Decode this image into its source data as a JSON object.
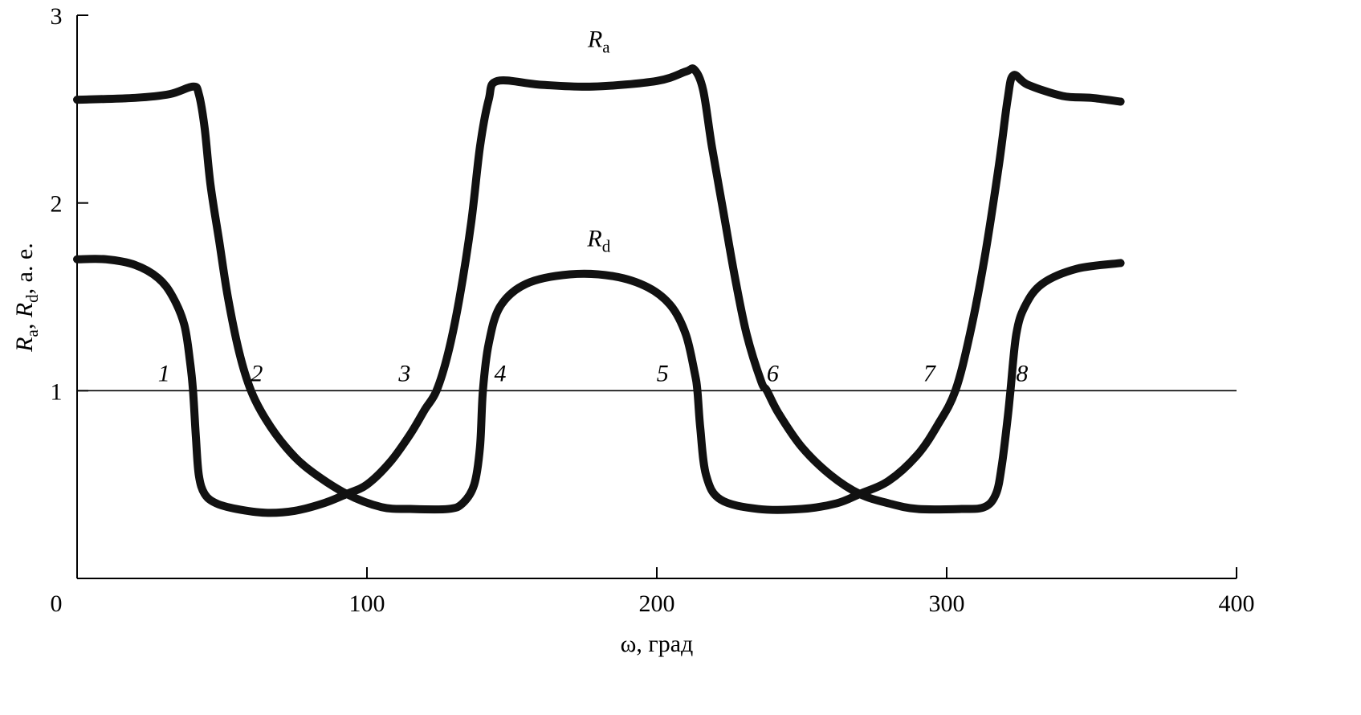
{
  "chart_data": {
    "type": "line",
    "title": "",
    "xlabel": "ω, град",
    "ylabel": {
      "parts": [
        [
          "R",
          "i"
        ],
        [
          "a",
          "sub"
        ],
        [
          ", ",
          ""
        ],
        [
          "R",
          "i"
        ],
        [
          "d",
          "sub"
        ],
        [
          ", a. e.",
          ""
        ]
      ]
    },
    "xlim": [
      0,
      400
    ],
    "ylim": [
      0,
      3
    ],
    "x_ticks": [
      "0",
      "100",
      "200",
      "300",
      "400"
    ],
    "y_ticks": [
      "1",
      "2",
      "3"
    ],
    "grid": false,
    "reference_line": {
      "y": 1
    },
    "line_color": "#111111",
    "series": [
      {
        "name": "Ra",
        "label_main": "R",
        "label_sub": "a",
        "label_at": [
          180,
          2.83
        ],
        "points": [
          [
            0,
            1.7
          ],
          [
            10,
            1.7
          ],
          [
            20,
            1.67
          ],
          [
            28,
            1.6
          ],
          [
            33,
            1.5
          ],
          [
            37,
            1.35
          ],
          [
            39,
            1.15
          ],
          [
            40,
            1.0
          ],
          [
            41,
            0.75
          ],
          [
            42,
            0.55
          ],
          [
            44,
            0.45
          ],
          [
            48,
            0.4
          ],
          [
            55,
            0.37
          ],
          [
            65,
            0.35
          ],
          [
            75,
            0.36
          ],
          [
            85,
            0.4
          ],
          [
            93,
            0.45
          ],
          [
            100,
            0.5
          ],
          [
            108,
            0.62
          ],
          [
            115,
            0.77
          ],
          [
            120,
            0.9
          ],
          [
            124,
            1.0
          ],
          [
            128,
            1.2
          ],
          [
            132,
            1.5
          ],
          [
            136,
            1.9
          ],
          [
            139,
            2.3
          ],
          [
            142,
            2.55
          ],
          [
            145,
            2.65
          ],
          [
            160,
            2.63
          ],
          [
            178,
            2.62
          ],
          [
            200,
            2.65
          ],
          [
            210,
            2.7
          ],
          [
            213,
            2.71
          ],
          [
            216,
            2.6
          ],
          [
            219,
            2.3
          ],
          [
            223,
            1.95
          ],
          [
            227,
            1.6
          ],
          [
            231,
            1.3
          ],
          [
            236,
            1.05
          ],
          [
            238,
            1.0
          ],
          [
            242,
            0.88
          ],
          [
            250,
            0.7
          ],
          [
            260,
            0.55
          ],
          [
            270,
            0.45
          ],
          [
            280,
            0.4
          ],
          [
            290,
            0.37
          ],
          [
            305,
            0.37
          ],
          [
            313,
            0.38
          ],
          [
            317,
            0.45
          ],
          [
            319,
            0.6
          ],
          [
            321,
            0.85
          ],
          [
            322,
            1.0
          ],
          [
            324,
            1.3
          ],
          [
            327,
            1.45
          ],
          [
            333,
            1.57
          ],
          [
            345,
            1.65
          ],
          [
            360,
            1.68
          ]
        ]
      },
      {
        "name": "Rd",
        "label_main": "R",
        "label_sub": "d",
        "label_at": [
          180,
          1.77
        ],
        "points": [
          [
            0,
            2.55
          ],
          [
            20,
            2.56
          ],
          [
            32,
            2.58
          ],
          [
            40,
            2.62
          ],
          [
            42,
            2.58
          ],
          [
            44,
            2.4
          ],
          [
            46,
            2.1
          ],
          [
            49,
            1.8
          ],
          [
            52,
            1.5
          ],
          [
            56,
            1.2
          ],
          [
            60,
            1.0
          ],
          [
            65,
            0.85
          ],
          [
            72,
            0.7
          ],
          [
            80,
            0.58
          ],
          [
            93,
            0.45
          ],
          [
            105,
            0.38
          ],
          [
            115,
            0.37
          ],
          [
            128,
            0.37
          ],
          [
            133,
            0.4
          ],
          [
            137,
            0.5
          ],
          [
            139,
            0.7
          ],
          [
            140,
            1.0
          ],
          [
            142,
            1.25
          ],
          [
            146,
            1.45
          ],
          [
            155,
            1.57
          ],
          [
            170,
            1.62
          ],
          [
            185,
            1.61
          ],
          [
            197,
            1.55
          ],
          [
            205,
            1.45
          ],
          [
            210,
            1.3
          ],
          [
            213,
            1.1
          ],
          [
            214,
            1.0
          ],
          [
            215,
            0.8
          ],
          [
            217,
            0.55
          ],
          [
            222,
            0.42
          ],
          [
            235,
            0.37
          ],
          [
            250,
            0.37
          ],
          [
            262,
            0.4
          ],
          [
            270,
            0.45
          ],
          [
            280,
            0.52
          ],
          [
            290,
            0.66
          ],
          [
            297,
            0.82
          ],
          [
            303,
            1.0
          ],
          [
            308,
            1.3
          ],
          [
            313,
            1.7
          ],
          [
            318,
            2.2
          ],
          [
            321,
            2.55
          ],
          [
            323,
            2.68
          ],
          [
            328,
            2.63
          ],
          [
            340,
            2.57
          ],
          [
            350,
            2.56
          ],
          [
            360,
            2.54
          ]
        ]
      }
    ],
    "annotations": [
      {
        "text": "1",
        "x": 30,
        "y": 1.05
      },
      {
        "text": "2",
        "x": 62,
        "y": 1.05
      },
      {
        "text": "3",
        "x": 113,
        "y": 1.05
      },
      {
        "text": "4",
        "x": 146,
        "y": 1.05
      },
      {
        "text": "5",
        "x": 202,
        "y": 1.05
      },
      {
        "text": "6",
        "x": 240,
        "y": 1.05
      },
      {
        "text": "7",
        "x": 294,
        "y": 1.05
      },
      {
        "text": "8",
        "x": 326,
        "y": 1.05
      }
    ]
  }
}
